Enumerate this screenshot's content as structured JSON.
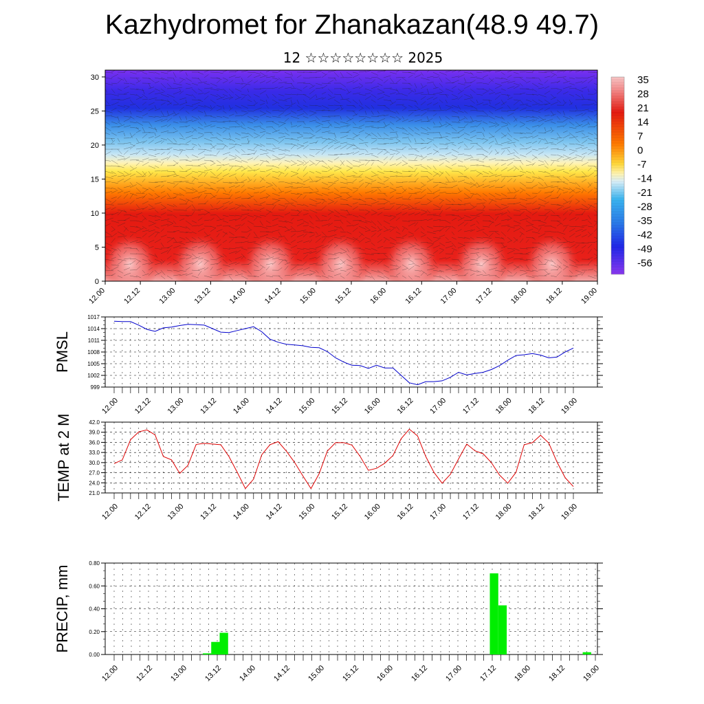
{
  "title": "Kazhydromet for Zhanakazan(48.9 49.7)",
  "subtitle": "12 ☆☆☆☆☆☆☆☆ 2025",
  "time_ticks": [
    "12.00",
    "12.12",
    "13.00",
    "13.12",
    "14.00",
    "14.12",
    "15.00",
    "15.12",
    "16.00",
    "16.12",
    "17.00",
    "17.12",
    "18.00",
    "18.12",
    "19.00"
  ],
  "chart_data": [
    {
      "type": "heatmap",
      "name": "cross-section",
      "y_ticks": [
        "0",
        "5",
        "10",
        "15",
        "20",
        "25",
        "30"
      ],
      "ylim": [
        0,
        31
      ],
      "colorbar_labels": [
        "35",
        "28",
        "21",
        "14",
        "7",
        "0",
        "-7",
        "-14",
        "-21",
        "-28",
        "-35",
        "-42",
        "-49",
        "-56"
      ],
      "colors": {
        "hot": "#f8b0b0",
        "red": "#e41a10",
        "orange": "#ff8a00",
        "yellow": "#ffe84a",
        "paleblue": "#c8e6f5",
        "blue": "#3aa0e8",
        "deepblue": "#2030e0",
        "violet": "#7a30f0"
      }
    },
    {
      "type": "line",
      "ylabel": "PMSL",
      "y_ticks": [
        "1017",
        "1014",
        "1011",
        "1008",
        "1005",
        "1002",
        "999"
      ],
      "ylim": [
        999,
        1017
      ],
      "color": "#0000cc",
      "values": [
        1015.9,
        1015.8,
        1015.8,
        1014.9,
        1013.8,
        1013.3,
        1014.2,
        1014.4,
        1014.8,
        1015.1,
        1015.0,
        1014.9,
        1014.0,
        1013.1,
        1013.0,
        1013.5,
        1014.0,
        1014.5,
        1013.2,
        1011.3,
        1010.5,
        1010.0,
        1009.8,
        1009.6,
        1009.2,
        1009.1,
        1008.1,
        1006.5,
        1005.4,
        1004.6,
        1004.5,
        1003.8,
        1004.6,
        1003.9,
        1003.9,
        1002.0,
        1000.1,
        999.6,
        1000.4,
        1000.4,
        1000.6,
        1001.5,
        1002.8,
        1002.1,
        1002.5,
        1002.8,
        1003.5,
        1004.5,
        1005.9,
        1007.1,
        1007.3,
        1007.6,
        1007.2,
        1006.5,
        1006.7,
        1008.0,
        1009.0
      ]
    },
    {
      "type": "line",
      "ylabel": "TEMP at 2 M",
      "y_ticks": [
        "42.0",
        "39.0",
        "36.0",
        "33.0",
        "30.0",
        "27.0",
        "24.0",
        "21.0"
      ],
      "ylim": [
        21,
        42
      ],
      "color": "#dd0000",
      "values": [
        29.7,
        30.8,
        36.8,
        39.1,
        39.7,
        38.2,
        31.8,
        30.8,
        26.8,
        29.2,
        35.4,
        35.7,
        35.5,
        35.3,
        31.8,
        27.2,
        22.3,
        25.1,
        32.3,
        35.3,
        36.2,
        33.4,
        30.1,
        26.1,
        22.3,
        26.7,
        33.4,
        35.9,
        35.9,
        35.2,
        31.8,
        27.7,
        28.3,
        29.8,
        32.1,
        37.1,
        39.9,
        37.9,
        31.8,
        27.1,
        23.9,
        26.5,
        31.1,
        35.5,
        33.5,
        32.6,
        30.0,
        26.3,
        23.9,
        27.1,
        35.3,
        35.9,
        38.1,
        35.8,
        30.2,
        25.5,
        22.9
      ]
    },
    {
      "type": "bar",
      "ylabel": "PRECIP, mm",
      "y_ticks": [
        "0.80",
        "0.60",
        "0.40",
        "0.20",
        "0.00"
      ],
      "ylim": [
        0,
        0.8
      ],
      "color": "#00ee00",
      "values": [
        0,
        0,
        0,
        0,
        0,
        0,
        0,
        0,
        0,
        0,
        0,
        0.01,
        0.11,
        0.19,
        0,
        0,
        0,
        0,
        0,
        0,
        0,
        0,
        0,
        0,
        0,
        0,
        0,
        0,
        0,
        0,
        0,
        0,
        0,
        0,
        0,
        0,
        0,
        0,
        0,
        0,
        0,
        0,
        0,
        0,
        0,
        0.71,
        0.43,
        0,
        0,
        0,
        0,
        0,
        0,
        0,
        0,
        0,
        0.02,
        0
      ]
    }
  ]
}
